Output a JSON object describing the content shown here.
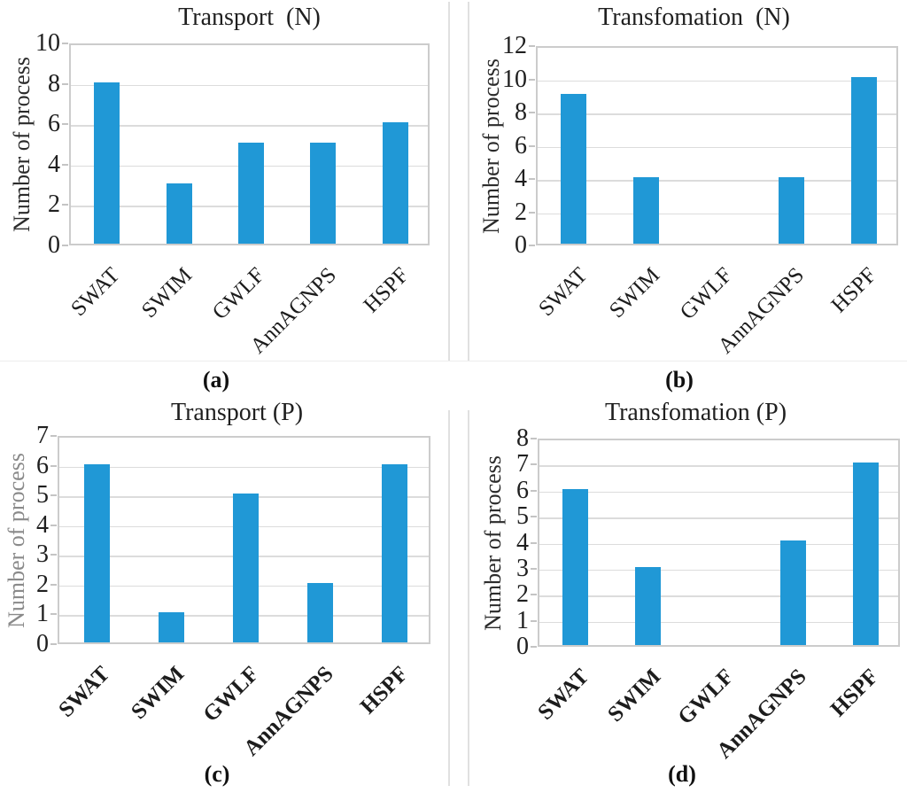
{
  "figure": {
    "bar_color": "#2098d6",
    "grid_color": "#dcdcdc",
    "plot_border_color": "#cccccc",
    "text_color": "#1f1f1f"
  },
  "chart_data": [
    {
      "type": "bar",
      "panel": "a",
      "caption_label": "(a)",
      "title": "Transport  (N)",
      "ylabel": "Number of process",
      "ylabel_color": "#2b2b2b",
      "categories": [
        "SWAT",
        "SWIM",
        "GWLF",
        "AnnAGNPS",
        "HSPF"
      ],
      "values": [
        8,
        3,
        5,
        5,
        6
      ],
      "ylim": [
        0,
        10
      ],
      "ytick_step": 2,
      "grid": true,
      "xlabel_rotation": 45,
      "xlabel_bold": false
    },
    {
      "type": "bar",
      "panel": "b",
      "caption_label": "(b)",
      "title": "Transfomation  (N)",
      "ylabel": "Number of process",
      "ylabel_color": "#2b2b2b",
      "categories": [
        "SWAT",
        "SWIM",
        "GWLF",
        "AnnAGNPS",
        "HSPF"
      ],
      "values": [
        9,
        4,
        0,
        4,
        10
      ],
      "ylim": [
        0,
        12
      ],
      "ytick_step": 2,
      "grid": true,
      "xlabel_rotation": 45,
      "xlabel_bold": false
    },
    {
      "type": "bar",
      "panel": "c",
      "caption_label": "(c)",
      "title": "Transport (P)",
      "ylabel": "Number of process",
      "ylabel_color": "#8a8a8a",
      "categories": [
        "SWAT",
        "SWIM",
        "GWLF",
        "AnnAGNPS",
        "HSPF"
      ],
      "values": [
        6,
        1,
        5,
        2,
        6
      ],
      "ylim": [
        0,
        7
      ],
      "ytick_step": 1,
      "grid": true,
      "xlabel_rotation": 45,
      "xlabel_bold": true
    },
    {
      "type": "bar",
      "panel": "d",
      "caption_label": "(d)",
      "title": "Transfomation (P)",
      "ylabel": "Number of process",
      "ylabel_color": "#2b2b2b",
      "categories": [
        "SWAT",
        "SWIM",
        "GWLF",
        "AnnAGNPS",
        "HSPF"
      ],
      "values": [
        6,
        3,
        0,
        4,
        7
      ],
      "ylim": [
        0,
        8
      ],
      "ytick_step": 1,
      "grid": true,
      "xlabel_rotation": 45,
      "xlabel_bold": true
    }
  ]
}
